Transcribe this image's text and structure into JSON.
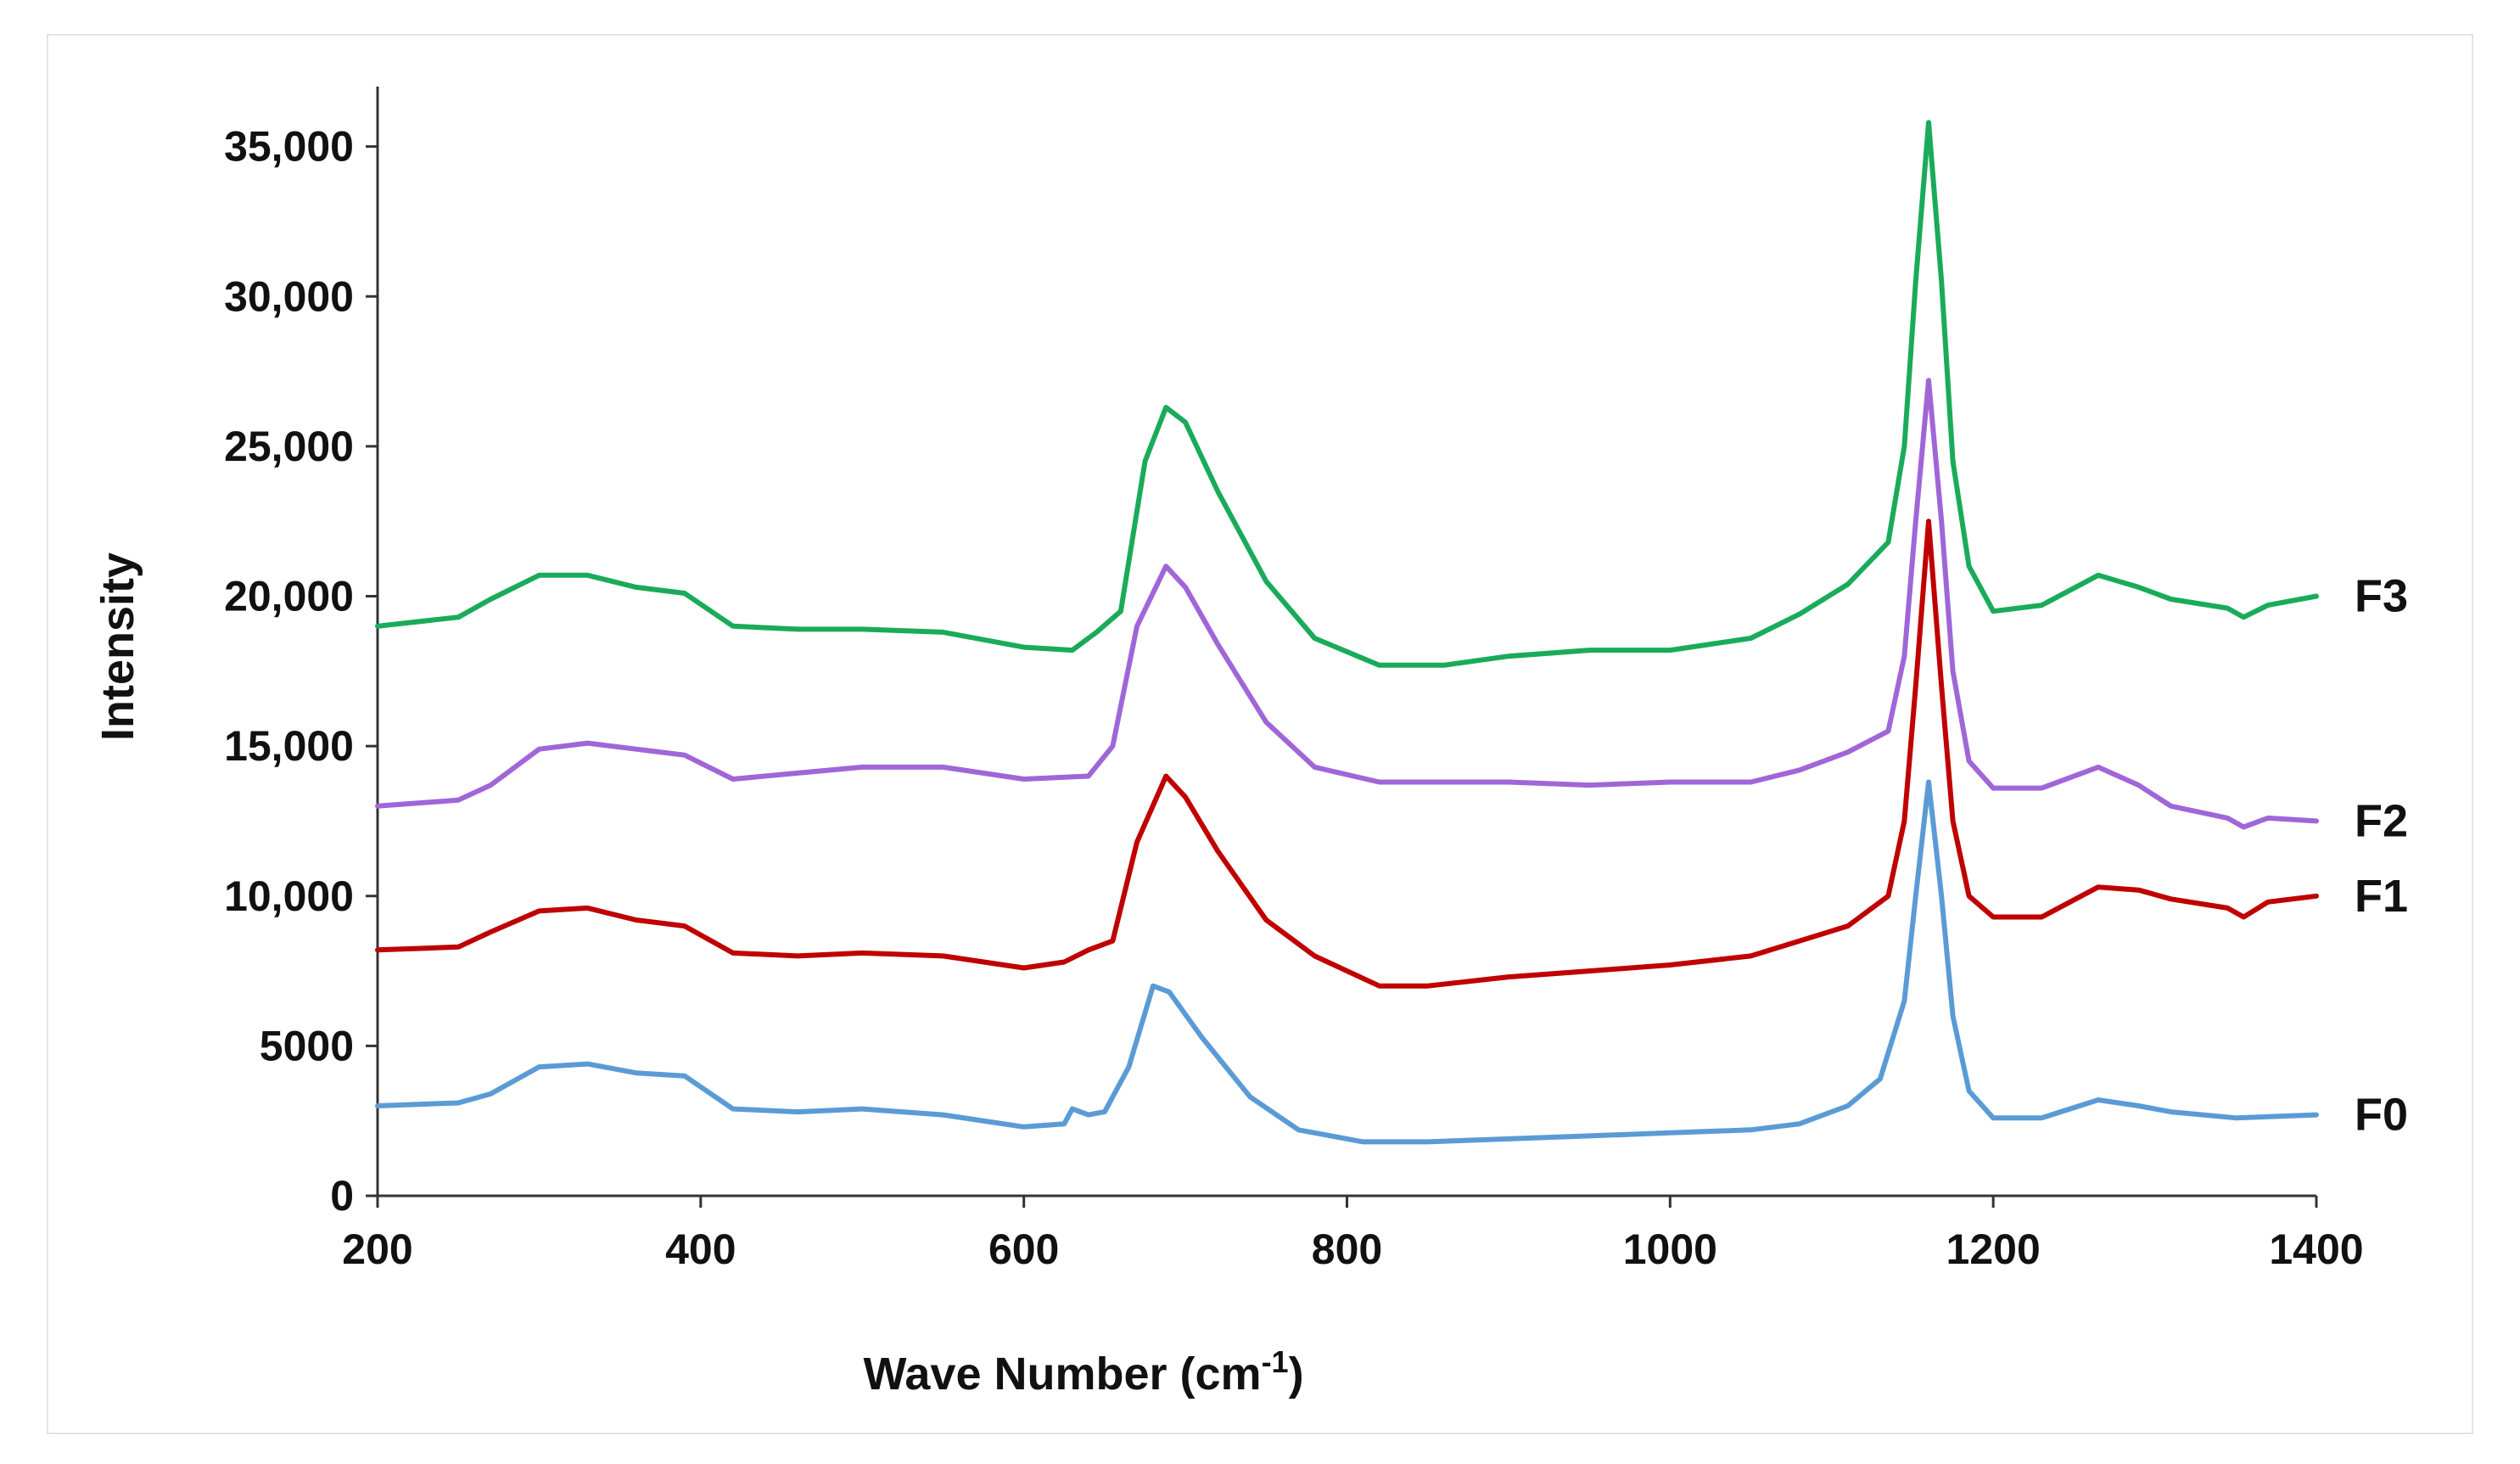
{
  "chart_data": {
    "type": "line",
    "title": "",
    "xlabel": "Wave Number (cm",
    "xlabel_sup": "-1",
    "xlabel_close": ")",
    "ylabel": "Intensity",
    "xlim": [
      200,
      1400
    ],
    "ylim": [
      0,
      37000
    ],
    "x_ticks": [
      200,
      400,
      600,
      800,
      1000,
      1200,
      1400
    ],
    "x_tick_labels": [
      "200",
      "400",
      "600",
      "800",
      "1000",
      "1200",
      "1400"
    ],
    "y_ticks": [
      0,
      5000,
      10000,
      15000,
      20000,
      25000,
      30000,
      35000
    ],
    "y_tick_labels": [
      "0",
      "5000",
      "10,000",
      "15,000",
      "20,000",
      "25,000",
      "30,000",
      "35,000"
    ],
    "grid": false,
    "series": [
      {
        "name": "F0",
        "color": "#5b9bd5",
        "points": [
          [
            200,
            3000
          ],
          [
            250,
            3100
          ],
          [
            270,
            3400
          ],
          [
            300,
            4300
          ],
          [
            330,
            4400
          ],
          [
            360,
            4100
          ],
          [
            390,
            4000
          ],
          [
            420,
            2900
          ],
          [
            460,
            2800
          ],
          [
            500,
            2900
          ],
          [
            550,
            2700
          ],
          [
            600,
            2300
          ],
          [
            625,
            2400
          ],
          [
            630,
            2900
          ],
          [
            640,
            2700
          ],
          [
            650,
            2800
          ],
          [
            665,
            4300
          ],
          [
            680,
            7000
          ],
          [
            690,
            6800
          ],
          [
            710,
            5300
          ],
          [
            740,
            3300
          ],
          [
            770,
            2200
          ],
          [
            810,
            1800
          ],
          [
            850,
            1800
          ],
          [
            900,
            1900
          ],
          [
            950,
            2000
          ],
          [
            1000,
            2100
          ],
          [
            1050,
            2200
          ],
          [
            1080,
            2400
          ],
          [
            1110,
            3000
          ],
          [
            1130,
            3900
          ],
          [
            1145,
            6500
          ],
          [
            1152,
            10000
          ],
          [
            1160,
            13800
          ],
          [
            1168,
            10000
          ],
          [
            1175,
            6000
          ],
          [
            1185,
            3500
          ],
          [
            1200,
            2600
          ],
          [
            1230,
            2600
          ],
          [
            1265,
            3200
          ],
          [
            1290,
            3000
          ],
          [
            1310,
            2800
          ],
          [
            1350,
            2600
          ],
          [
            1400,
            2700
          ]
        ]
      },
      {
        "name": "F1",
        "color": "#c00000",
        "points": [
          [
            200,
            8200
          ],
          [
            250,
            8300
          ],
          [
            270,
            8800
          ],
          [
            300,
            9500
          ],
          [
            330,
            9600
          ],
          [
            360,
            9200
          ],
          [
            390,
            9000
          ],
          [
            420,
            8100
          ],
          [
            460,
            8000
          ],
          [
            500,
            8100
          ],
          [
            550,
            8000
          ],
          [
            600,
            7600
          ],
          [
            625,
            7800
          ],
          [
            640,
            8200
          ],
          [
            655,
            8500
          ],
          [
            670,
            11800
          ],
          [
            688,
            14000
          ],
          [
            700,
            13300
          ],
          [
            720,
            11500
          ],
          [
            750,
            9200
          ],
          [
            780,
            8000
          ],
          [
            820,
            7000
          ],
          [
            850,
            7000
          ],
          [
            900,
            7300
          ],
          [
            950,
            7500
          ],
          [
            1000,
            7700
          ],
          [
            1050,
            8000
          ],
          [
            1080,
            8500
          ],
          [
            1110,
            9000
          ],
          [
            1135,
            10000
          ],
          [
            1145,
            12500
          ],
          [
            1152,
            17000
          ],
          [
            1160,
            22500
          ],
          [
            1168,
            17000
          ],
          [
            1175,
            12500
          ],
          [
            1185,
            10000
          ],
          [
            1200,
            9300
          ],
          [
            1230,
            9300
          ],
          [
            1265,
            10300
          ],
          [
            1290,
            10200
          ],
          [
            1310,
            9900
          ],
          [
            1345,
            9600
          ],
          [
            1355,
            9300
          ],
          [
            1370,
            9800
          ],
          [
            1400,
            10000
          ]
        ]
      },
      {
        "name": "F2",
        "color": "#a066d8",
        "points": [
          [
            200,
            13000
          ],
          [
            250,
            13200
          ],
          [
            270,
            13700
          ],
          [
            300,
            14900
          ],
          [
            330,
            15100
          ],
          [
            360,
            14900
          ],
          [
            390,
            14700
          ],
          [
            420,
            13900
          ],
          [
            460,
            14100
          ],
          [
            500,
            14300
          ],
          [
            550,
            14300
          ],
          [
            600,
            13900
          ],
          [
            640,
            14000
          ],
          [
            655,
            15000
          ],
          [
            670,
            19000
          ],
          [
            688,
            21000
          ],
          [
            700,
            20300
          ],
          [
            720,
            18400
          ],
          [
            750,
            15800
          ],
          [
            780,
            14300
          ],
          [
            820,
            13800
          ],
          [
            850,
            13800
          ],
          [
            900,
            13800
          ],
          [
            950,
            13700
          ],
          [
            1000,
            13800
          ],
          [
            1050,
            13800
          ],
          [
            1080,
            14200
          ],
          [
            1110,
            14800
          ],
          [
            1135,
            15500
          ],
          [
            1145,
            18000
          ],
          [
            1152,
            22500
          ],
          [
            1160,
            27200
          ],
          [
            1168,
            22500
          ],
          [
            1175,
            17500
          ],
          [
            1185,
            14500
          ],
          [
            1200,
            13600
          ],
          [
            1230,
            13600
          ],
          [
            1265,
            14300
          ],
          [
            1290,
            13700
          ],
          [
            1310,
            13000
          ],
          [
            1345,
            12600
          ],
          [
            1355,
            12300
          ],
          [
            1370,
            12600
          ],
          [
            1400,
            12500
          ]
        ]
      },
      {
        "name": "F3",
        "color": "#1aab5a",
        "points": [
          [
            200,
            19000
          ],
          [
            250,
            19300
          ],
          [
            270,
            19900
          ],
          [
            300,
            20700
          ],
          [
            330,
            20700
          ],
          [
            360,
            20300
          ],
          [
            390,
            20100
          ],
          [
            420,
            19000
          ],
          [
            460,
            18900
          ],
          [
            500,
            18900
          ],
          [
            550,
            18800
          ],
          [
            600,
            18300
          ],
          [
            630,
            18200
          ],
          [
            645,
            18800
          ],
          [
            660,
            19500
          ],
          [
            675,
            24500
          ],
          [
            688,
            26300
          ],
          [
            700,
            25800
          ],
          [
            720,
            23500
          ],
          [
            750,
            20500
          ],
          [
            780,
            18600
          ],
          [
            820,
            17700
          ],
          [
            860,
            17700
          ],
          [
            900,
            18000
          ],
          [
            950,
            18200
          ],
          [
            1000,
            18200
          ],
          [
            1050,
            18600
          ],
          [
            1080,
            19400
          ],
          [
            1110,
            20400
          ],
          [
            1135,
            21800
          ],
          [
            1145,
            25000
          ],
          [
            1152,
            30500
          ],
          [
            1160,
            35800
          ],
          [
            1168,
            30500
          ],
          [
            1175,
            24500
          ],
          [
            1185,
            21000
          ],
          [
            1200,
            19500
          ],
          [
            1230,
            19700
          ],
          [
            1265,
            20700
          ],
          [
            1290,
            20300
          ],
          [
            1310,
            19900
          ],
          [
            1345,
            19600
          ],
          [
            1355,
            19300
          ],
          [
            1370,
            19700
          ],
          [
            1400,
            20000
          ]
        ]
      }
    ]
  }
}
